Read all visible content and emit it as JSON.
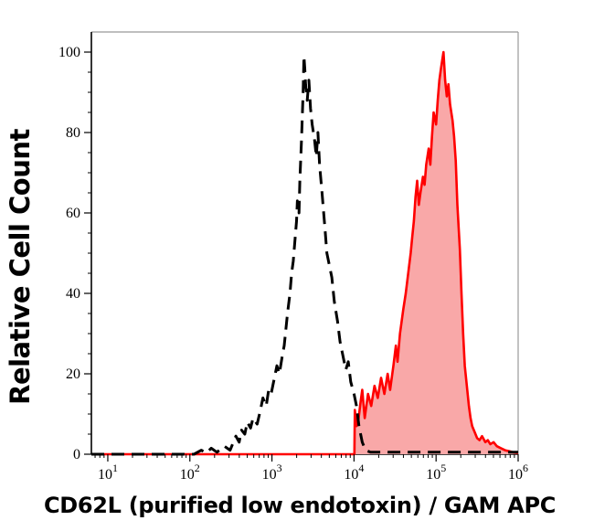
{
  "figure": {
    "background": "#ffffff",
    "plot_border_primary_color": "#000000",
    "plot_border_secondary_color": "#999999"
  },
  "chart_data": {
    "type": "area",
    "subtype": "flow-cytometry-overlay-histogram",
    "title": "",
    "xlabel": "CD62L (purified low endotoxin) / GAM APC",
    "ylabel": "Relative Cell Count",
    "x_scale": "log10",
    "x_domain_log10": [
      0.8,
      6.0
    ],
    "y_domain": [
      0,
      105
    ],
    "x_major_tick_exponents": [
      1,
      2,
      3,
      4,
      5,
      6
    ],
    "x_tick_base": "10",
    "y_major_ticks": [
      0,
      20,
      40,
      60,
      80,
      100
    ],
    "y_minor_tick_step": 5,
    "grid": false,
    "legend": "none",
    "series": [
      {
        "name": "stained-sample-histogram",
        "description": "red solid filled histogram",
        "color": "#ff0000",
        "fill": "#f9a8a8",
        "stroke_width": 2.6,
        "dash": "",
        "points": [
          [
            0.8,
            0
          ],
          [
            4.005,
            0
          ],
          [
            4.01,
            11
          ],
          [
            4.03,
            7
          ],
          [
            4.05,
            8
          ],
          [
            4.08,
            13
          ],
          [
            4.1,
            16
          ],
          [
            4.13,
            9
          ],
          [
            4.17,
            15
          ],
          [
            4.21,
            12
          ],
          [
            4.25,
            17
          ],
          [
            4.29,
            14
          ],
          [
            4.33,
            19
          ],
          [
            4.37,
            15
          ],
          [
            4.41,
            20
          ],
          [
            4.44,
            16
          ],
          [
            4.48,
            22
          ],
          [
            4.51,
            27
          ],
          [
            4.53,
            23
          ],
          [
            4.56,
            30
          ],
          [
            4.6,
            36
          ],
          [
            4.63,
            40
          ],
          [
            4.66,
            45
          ],
          [
            4.69,
            50
          ],
          [
            4.71,
            54
          ],
          [
            4.73,
            58
          ],
          [
            4.75,
            64
          ],
          [
            4.77,
            68
          ],
          [
            4.79,
            62
          ],
          [
            4.81,
            65
          ],
          [
            4.84,
            69
          ],
          [
            4.86,
            67
          ],
          [
            4.88,
            72
          ],
          [
            4.91,
            76
          ],
          [
            4.93,
            72
          ],
          [
            4.95,
            79
          ],
          [
            4.97,
            85
          ],
          [
            5.0,
            82
          ],
          [
            5.02,
            88
          ],
          [
            5.04,
            93
          ],
          [
            5.06,
            96
          ],
          [
            5.09,
            100
          ],
          [
            5.11,
            93
          ],
          [
            5.13,
            89
          ],
          [
            5.15,
            92
          ],
          [
            5.17,
            87
          ],
          [
            5.2,
            83
          ],
          [
            5.22,
            79
          ],
          [
            5.24,
            73
          ],
          [
            5.26,
            62
          ],
          [
            5.29,
            51
          ],
          [
            5.31,
            40
          ],
          [
            5.33,
            30
          ],
          [
            5.35,
            22
          ],
          [
            5.38,
            16
          ],
          [
            5.4,
            12
          ],
          [
            5.42,
            9
          ],
          [
            5.44,
            7
          ],
          [
            5.47,
            5.5
          ],
          [
            5.5,
            4
          ],
          [
            5.53,
            3.5
          ],
          [
            5.56,
            4.5
          ],
          [
            5.6,
            3
          ],
          [
            5.63,
            3.5
          ],
          [
            5.66,
            2.5
          ],
          [
            5.7,
            3
          ],
          [
            5.74,
            2
          ],
          [
            5.79,
            1.5
          ],
          [
            5.84,
            1
          ],
          [
            5.9,
            0.7
          ],
          [
            5.95,
            0.4
          ],
          [
            6.0,
            0.3
          ]
        ]
      },
      {
        "name": "control-dashed-histogram",
        "description": "black dashed unfilled histogram",
        "color": "#000000",
        "fill": "none",
        "stroke_width": 3,
        "dash": "14 8",
        "points": [
          [
            0.8,
            0
          ],
          [
            2.05,
            0
          ],
          [
            2.14,
            1
          ],
          [
            2.2,
            0.3
          ],
          [
            2.26,
            1.5
          ],
          [
            2.33,
            0.5
          ],
          [
            2.42,
            2
          ],
          [
            2.49,
            1
          ],
          [
            2.53,
            3
          ],
          [
            2.56,
            4.5
          ],
          [
            2.6,
            3
          ],
          [
            2.63,
            6
          ],
          [
            2.67,
            5
          ],
          [
            2.7,
            8
          ],
          [
            2.74,
            6.5
          ],
          [
            2.77,
            9
          ],
          [
            2.82,
            7.5
          ],
          [
            2.86,
            11
          ],
          [
            2.89,
            14
          ],
          [
            2.93,
            12
          ],
          [
            2.96,
            16
          ],
          [
            2.99,
            15
          ],
          [
            3.03,
            19
          ],
          [
            3.06,
            22
          ],
          [
            3.09,
            20
          ],
          [
            3.13,
            25
          ],
          [
            3.15,
            27
          ],
          [
            3.17,
            31
          ],
          [
            3.19,
            35
          ],
          [
            3.22,
            40
          ],
          [
            3.24,
            45
          ],
          [
            3.26,
            48
          ],
          [
            3.28,
            53
          ],
          [
            3.3,
            58
          ],
          [
            3.31,
            63
          ],
          [
            3.33,
            60
          ],
          [
            3.34,
            68
          ],
          [
            3.35,
            73
          ],
          [
            3.36,
            78
          ],
          [
            3.37,
            84
          ],
          [
            3.38,
            90
          ],
          [
            3.39,
            99
          ],
          [
            3.4,
            96
          ],
          [
            3.41,
            92
          ],
          [
            3.43,
            88
          ],
          [
            3.45,
            93
          ],
          [
            3.47,
            86
          ],
          [
            3.49,
            82
          ],
          [
            3.52,
            78
          ],
          [
            3.54,
            74
          ],
          [
            3.56,
            80
          ],
          [
            3.58,
            72
          ],
          [
            3.61,
            65
          ],
          [
            3.63,
            60
          ],
          [
            3.65,
            55
          ],
          [
            3.67,
            50
          ],
          [
            3.7,
            47
          ],
          [
            3.73,
            44
          ],
          [
            3.76,
            38
          ],
          [
            3.8,
            33
          ],
          [
            3.83,
            28
          ],
          [
            3.86,
            25
          ],
          [
            3.9,
            21
          ],
          [
            3.93,
            23
          ],
          [
            3.96,
            18
          ],
          [
            4.0,
            15
          ],
          [
            4.03,
            12
          ],
          [
            4.06,
            7
          ],
          [
            4.1,
            3
          ],
          [
            4.14,
            1
          ],
          [
            4.2,
            0.5
          ],
          [
            6.0,
            0.5
          ]
        ]
      }
    ]
  }
}
